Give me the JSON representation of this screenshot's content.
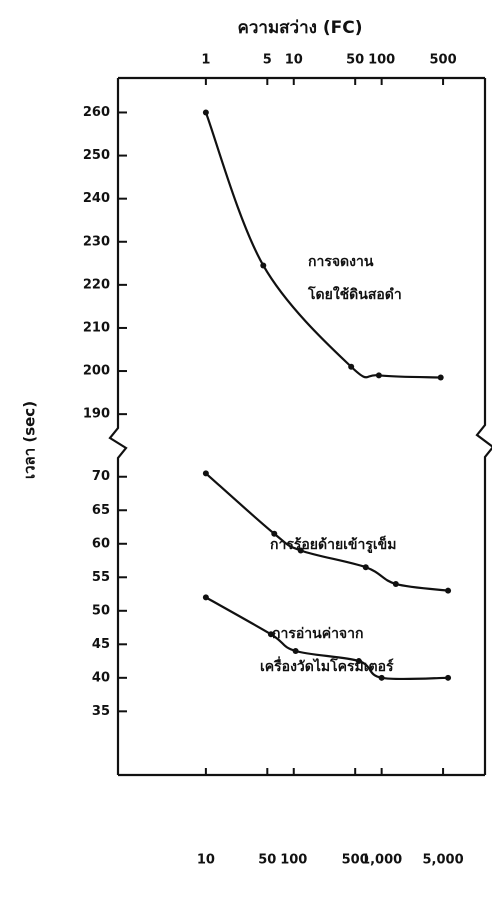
{
  "chart_data": {
    "type": "line",
    "title": "ความสว่าง (FC)",
    "ylabel": "เวลา (sec)",
    "log_x": true,
    "xlim": [
      1,
      15000
    ],
    "xticks": [
      10,
      50,
      100,
      500,
      {
        "value": 1000,
        "label": "1,000"
      },
      {
        "value": 5000,
        "label": "5,000"
      }
    ],
    "x2lim": [
      0.1,
      1500
    ],
    "x2ticks": [
      1,
      5,
      10,
      50,
      100,
      500
    ],
    "y_axes": [
      {
        "ylim": [
          184,
          268
        ],
        "yticks": [
          190,
          200,
          210,
          220,
          230,
          240,
          250,
          260
        ]
      },
      {
        "ylim": [
          25.5,
          72.2
        ],
        "yticks": [
          35,
          40,
          45,
          50,
          55,
          60,
          65,
          70
        ]
      }
    ],
    "color": "#111111",
    "series": [
      {
        "labels": [
          "การจดงาน",
          "โดยใช้ดินสอดำ"
        ],
        "panel": 0,
        "x": [
          10,
          45,
          450,
          930,
          4700
        ],
        "values": [
          260,
          224.5,
          201,
          199,
          198.5
        ]
      },
      {
        "labels": [
          "การร้อยด้ายเข้ารูเข็ม"
        ],
        "panel": 1,
        "x": [
          10,
          60,
          120,
          660,
          1450,
          5700
        ],
        "values": [
          70.5,
          61.5,
          59,
          56.5,
          54,
          53
        ]
      },
      {
        "labels": [
          "การอ่านค่าจาก",
          "เครื่องวัดไมโครมิเตอร์"
        ],
        "panel": 1,
        "x": [
          10,
          55,
          105,
          550,
          1000,
          5700
        ],
        "values": [
          52,
          46.5,
          44,
          42.5,
          40,
          40
        ]
      }
    ]
  }
}
